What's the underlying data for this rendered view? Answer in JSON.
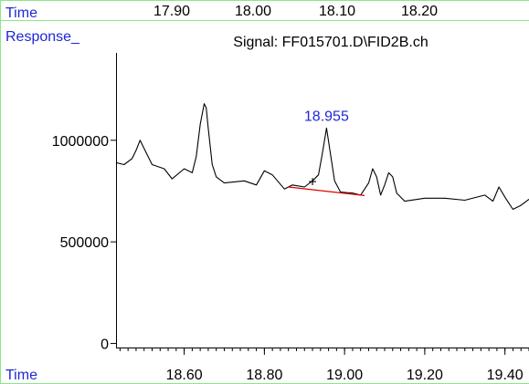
{
  "colors": {
    "frame": "#88e888",
    "axis_label": "#1f27d6",
    "trace": "#000000",
    "baseline": "#e00000",
    "peak_label": "#1f27d6"
  },
  "top_bar": {
    "label": "Time",
    "ticks": [
      "17.90",
      "18.00",
      "18.10",
      "18.20"
    ]
  },
  "response_label": "Response_",
  "bottom_label": "Time",
  "chart_data": {
    "type": "line",
    "title": "Signal: FF015701.D\\FID2B.ch",
    "ylabel": "Response_",
    "xlabel": "Time",
    "xlim": [
      18.43,
      19.46
    ],
    "ylim": [
      -20000,
      1430000
    ],
    "x_ticks": [
      18.6,
      18.8,
      19.0,
      19.2,
      19.4
    ],
    "x_tick_labels": [
      "18.60",
      "18.80",
      "19.00",
      "19.20",
      "19.40"
    ],
    "y_ticks": [
      0,
      500000,
      1000000
    ],
    "y_tick_labels": [
      "0",
      "500000",
      "1000000"
    ],
    "grid": false,
    "series": [
      {
        "x": [
          18.43,
          18.45,
          18.47,
          18.48,
          18.49,
          18.5,
          18.52,
          18.55,
          18.57,
          18.6,
          18.62,
          18.63,
          18.64,
          18.65,
          18.655,
          18.66,
          18.67,
          18.68,
          18.7,
          18.75,
          18.78,
          18.8,
          18.82,
          18.85,
          18.87,
          18.9,
          18.92,
          18.935,
          18.945,
          18.955,
          18.965,
          18.975,
          18.99,
          19.02,
          19.04,
          19.06,
          19.07,
          19.08,
          19.09,
          19.1,
          19.11,
          19.12,
          19.13,
          19.15,
          19.2,
          19.25,
          19.3,
          19.35,
          19.37,
          19.385,
          19.4,
          19.42,
          19.44,
          19.46
        ],
        "y": [
          890000,
          880000,
          910000,
          950000,
          1000000,
          960000,
          880000,
          860000,
          810000,
          860000,
          840000,
          920000,
          1080000,
          1180000,
          1160000,
          1060000,
          880000,
          820000,
          790000,
          800000,
          780000,
          850000,
          830000,
          760000,
          780000,
          770000,
          800000,
          830000,
          940000,
          1060000,
          930000,
          800000,
          745000,
          740000,
          730000,
          790000,
          860000,
          820000,
          730000,
          780000,
          840000,
          820000,
          740000,
          700000,
          715000,
          715000,
          705000,
          730000,
          700000,
          770000,
          720000,
          660000,
          680000,
          710000
        ]
      }
    ],
    "baseline": {
      "x": [
        18.86,
        19.05
      ],
      "y": [
        770000,
        728000
      ]
    },
    "annotations": [
      {
        "text": "18.955",
        "x": 18.955,
        "y": 1060000
      },
      {
        "text": "+",
        "x": 18.92,
        "y": 800000
      }
    ]
  }
}
